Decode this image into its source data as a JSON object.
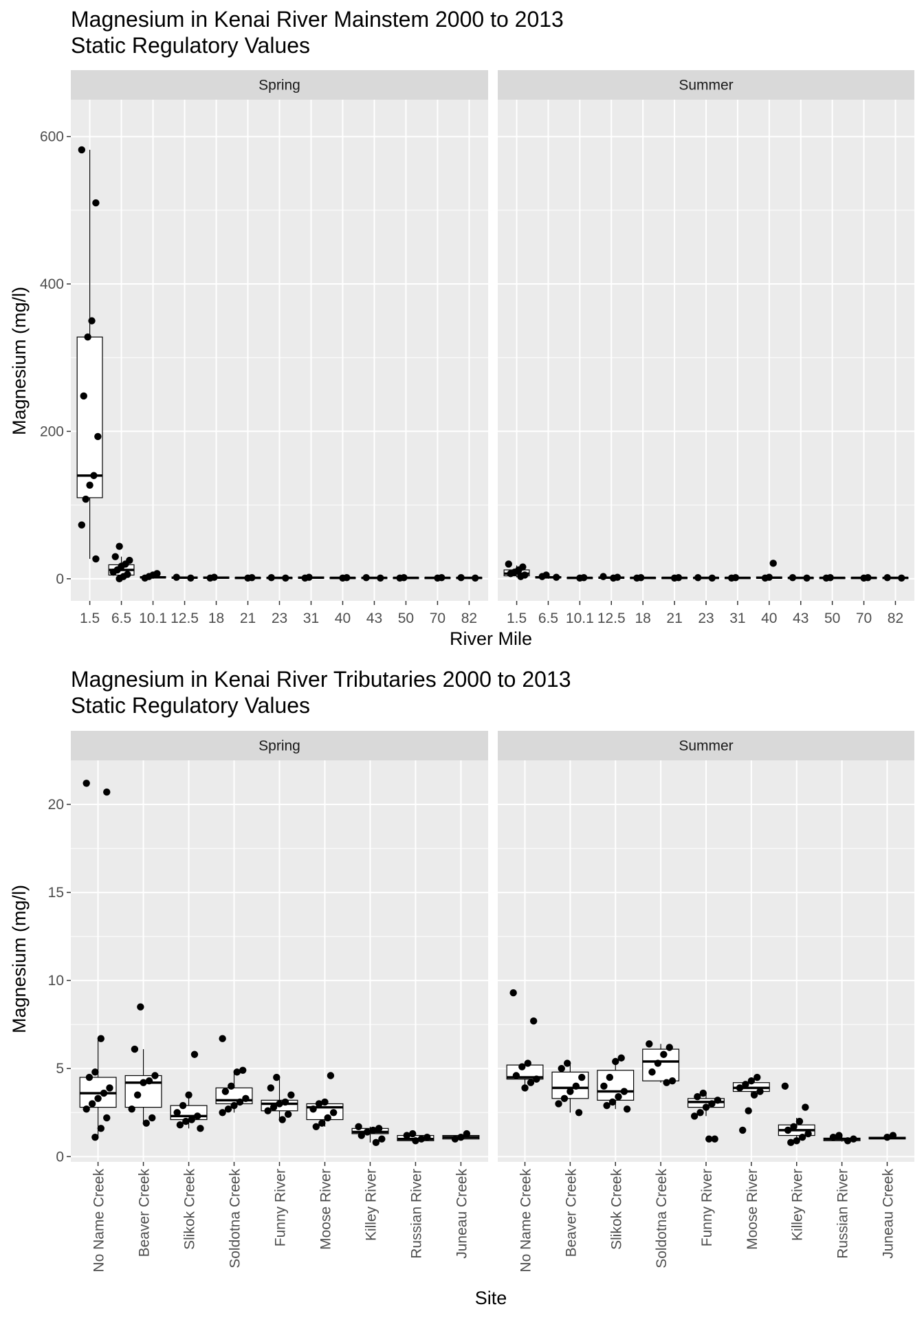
{
  "colors": {
    "panel_bg": "#ebebeb",
    "strip_bg": "#d9d9d9",
    "grid": "#ffffff",
    "box_fill": "#ffffff",
    "ink": "#000000",
    "tick_text": "#4d4d4d"
  },
  "chart_data": [
    {
      "type": "box",
      "title": "Magnesium in Kenai River Mainstem  2000 to 2013",
      "subtitle": "Static Regulatory Values",
      "xlabel": "River Mile",
      "ylabel": "Magnesium (mg/l)",
      "ylim": [
        -30,
        650
      ],
      "yticks": [
        0,
        200,
        400,
        600
      ],
      "yminor": [
        100,
        300,
        500
      ],
      "categories": [
        "1.5",
        "6.5",
        "10.1",
        "12.5",
        "18",
        "21",
        "23",
        "31",
        "40",
        "43",
        "50",
        "70",
        "82"
      ],
      "facets": [
        {
          "label": "Spring",
          "boxes": [
            {
              "q1": 110,
              "median": 140,
              "q3": 328,
              "lower": 27,
              "upper": 582,
              "points": [
                582,
                510,
                350,
                328,
                248,
                193,
                140,
                127,
                108,
                73,
                27
              ]
            },
            {
              "q1": 5,
              "median": 12,
              "q3": 19,
              "lower": 0,
              "upper": 30,
              "points": [
                44,
                30,
                25,
                20,
                17,
                12,
                9,
                6,
                3,
                0
              ]
            },
            {
              "q1": 1,
              "median": 2,
              "q3": 3,
              "lower": 0,
              "upper": 5,
              "points": [
                7,
                5,
                3,
                1
              ]
            },
            {
              "q1": 0.5,
              "median": 1.5,
              "q3": 2.5,
              "lower": 0,
              "upper": 3,
              "points": [
                2,
                1
              ]
            },
            {
              "q1": 0.5,
              "median": 1.5,
              "q3": 2.5,
              "lower": 0,
              "upper": 3,
              "points": [
                2,
                1
              ]
            },
            {
              "q1": 0.5,
              "median": 1.2,
              "q3": 2,
              "lower": 0,
              "upper": 2.5,
              "points": [
                1.5,
                1
              ]
            },
            {
              "q1": 0.5,
              "median": 1.2,
              "q3": 2,
              "lower": 0,
              "upper": 2.5,
              "points": [
                1.5,
                1
              ]
            },
            {
              "q1": 0.5,
              "median": 1.5,
              "q3": 2.5,
              "lower": 0,
              "upper": 3,
              "points": [
                2,
                1
              ]
            },
            {
              "q1": 0.5,
              "median": 1.2,
              "q3": 2,
              "lower": 0,
              "upper": 2.5,
              "points": [
                1.5,
                1
              ]
            },
            {
              "q1": 0.5,
              "median": 1.2,
              "q3": 2,
              "lower": 0,
              "upper": 2.5,
              "points": [
                1.5,
                1
              ]
            },
            {
              "q1": 0.5,
              "median": 1.2,
              "q3": 2,
              "lower": 0,
              "upper": 2.5,
              "points": [
                1.5,
                1
              ]
            },
            {
              "q1": 0.5,
              "median": 1.2,
              "q3": 2,
              "lower": 0,
              "upper": 2.5,
              "points": [
                1.5,
                1
              ]
            },
            {
              "q1": 0.5,
              "median": 1.2,
              "q3": 2,
              "lower": 0,
              "upper": 2.5,
              "points": [
                1.5,
                1
              ]
            }
          ]
        },
        {
          "label": "Summer",
          "boxes": [
            {
              "q1": 4,
              "median": 7,
              "q3": 12,
              "lower": 2,
              "upper": 18,
              "points": [
                20,
                16,
                12,
                9,
                7,
                5,
                3
              ]
            },
            {
              "q1": 1,
              "median": 2,
              "q3": 3,
              "lower": 0,
              "upper": 4,
              "points": [
                5,
                3,
                2
              ]
            },
            {
              "q1": 0.5,
              "median": 1.2,
              "q3": 2,
              "lower": 0,
              "upper": 2.5,
              "points": [
                1.5,
                1
              ]
            },
            {
              "q1": 0.5,
              "median": 1.5,
              "q3": 2.5,
              "lower": 0,
              "upper": 3,
              "points": [
                3,
                2,
                1
              ]
            },
            {
              "q1": 0.5,
              "median": 1.2,
              "q3": 2,
              "lower": 0,
              "upper": 2.5,
              "points": [
                1.5,
                1
              ]
            },
            {
              "q1": 0.5,
              "median": 1.2,
              "q3": 2,
              "lower": 0,
              "upper": 2.5,
              "points": [
                1.5,
                1
              ]
            },
            {
              "q1": 0.5,
              "median": 1.2,
              "q3": 2,
              "lower": 0,
              "upper": 2.5,
              "points": [
                1.5,
                1
              ]
            },
            {
              "q1": 0.5,
              "median": 1.2,
              "q3": 2,
              "lower": 0,
              "upper": 2.5,
              "points": [
                1.5,
                1
              ]
            },
            {
              "q1": 0.5,
              "median": 1.5,
              "q3": 2.5,
              "lower": 0,
              "upper": 3,
              "points": [
                21,
                2,
                1
              ]
            },
            {
              "q1": 0.5,
              "median": 1.2,
              "q3": 2,
              "lower": 0,
              "upper": 2.5,
              "points": [
                1.5,
                1
              ]
            },
            {
              "q1": 0.5,
              "median": 1.2,
              "q3": 2,
              "lower": 0,
              "upper": 2.5,
              "points": [
                1.5,
                1
              ]
            },
            {
              "q1": 0.5,
              "median": 1.2,
              "q3": 2,
              "lower": 0,
              "upper": 2.5,
              "points": [
                1.5,
                1
              ]
            },
            {
              "q1": 0.5,
              "median": 1.2,
              "q3": 2,
              "lower": 0,
              "upper": 2.5,
              "points": [
                1.5,
                1
              ]
            }
          ]
        }
      ]
    },
    {
      "type": "box",
      "title": "Magnesium in Kenai River Tributaries  2000 to 2013",
      "subtitle": "Static Regulatory Values",
      "xlabel": "Site",
      "ylabel": "Magnesium (mg/l)",
      "ylim": [
        -0.3,
        22.5
      ],
      "yticks": [
        0,
        5,
        10,
        15,
        20
      ],
      "yminor": [
        2.5,
        7.5,
        12.5,
        17.5
      ],
      "rotated_x_labels": true,
      "categories": [
        "No Name Creek",
        "Beaver Creek",
        "Slikok Creek",
        "Soldotna Creek",
        "Funny River",
        "Moose River",
        "Killey River",
        "Russian River",
        "Juneau Creek"
      ],
      "facets": [
        {
          "label": "Spring",
          "boxes": [
            {
              "q1": 2.8,
              "median": 3.6,
              "q3": 4.5,
              "lower": 1.1,
              "upper": 6.7,
              "points": [
                21.2,
                20.7,
                6.7,
                4.8,
                4.5,
                3.9,
                3.6,
                3.3,
                3.0,
                2.7,
                2.2,
                1.6,
                1.1
              ]
            },
            {
              "q1": 2.8,
              "median": 4.2,
              "q3": 4.6,
              "lower": 1.9,
              "upper": 6.1,
              "points": [
                8.5,
                6.1,
                4.6,
                4.3,
                4.2,
                3.5,
                2.7,
                2.2,
                1.9
              ]
            },
            {
              "q1": 2.1,
              "median": 2.3,
              "q3": 2.9,
              "lower": 1.6,
              "upper": 3.5,
              "points": [
                5.8,
                3.5,
                2.9,
                2.5,
                2.3,
                2.1,
                2.0,
                1.8,
                1.6
              ]
            },
            {
              "q1": 3.0,
              "median": 3.2,
              "q3": 3.9,
              "lower": 2.5,
              "upper": 4.9,
              "points": [
                6.7,
                4.9,
                4.8,
                4.0,
                3.7,
                3.3,
                3.1,
                2.9,
                2.7,
                2.5
              ]
            },
            {
              "q1": 2.6,
              "median": 3.0,
              "q3": 3.2,
              "lower": 2.1,
              "upper": 4.5,
              "points": [
                4.5,
                3.9,
                3.5,
                3.1,
                3.0,
                2.8,
                2.6,
                2.4,
                2.1
              ]
            },
            {
              "q1": 2.1,
              "median": 2.8,
              "q3": 3.0,
              "lower": 1.7,
              "upper": 3.1,
              "points": [
                4.6,
                3.1,
                3.0,
                2.7,
                2.5,
                2.2,
                1.9,
                1.7
              ]
            },
            {
              "q1": 1.3,
              "median": 1.4,
              "q3": 1.6,
              "lower": 0.8,
              "upper": 1.7,
              "points": [
                1.7,
                1.6,
                1.5,
                1.4,
                1.2,
                1.0,
                0.8
              ]
            },
            {
              "q1": 0.9,
              "median": 1.0,
              "q3": 1.2,
              "lower": 0.9,
              "upper": 1.3,
              "points": [
                1.3,
                1.2,
                1.1,
                1.0,
                0.9
              ]
            },
            {
              "q1": 1.0,
              "median": 1.1,
              "q3": 1.2,
              "lower": 0.95,
              "upper": 1.3,
              "points": [
                1.3,
                1.1,
                1.0
              ]
            }
          ]
        },
        {
          "label": "Summer",
          "boxes": [
            {
              "q1": 4.4,
              "median": 4.5,
              "q3": 5.2,
              "lower": 3.9,
              "upper": 5.3,
              "points": [
                9.3,
                7.7,
                5.3,
                5.1,
                4.6,
                4.4,
                4.2,
                3.9
              ]
            },
            {
              "q1": 3.3,
              "median": 3.9,
              "q3": 4.8,
              "lower": 2.5,
              "upper": 5.3,
              "points": [
                5.3,
                5.0,
                4.5,
                4.0,
                3.7,
                3.3,
                3.0,
                2.5
              ]
            },
            {
              "q1": 3.2,
              "median": 3.7,
              "q3": 4.9,
              "lower": 2.7,
              "upper": 5.6,
              "points": [
                5.6,
                5.4,
                4.5,
                4.0,
                3.7,
                3.4,
                3.1,
                2.9,
                2.7
              ]
            },
            {
              "q1": 4.3,
              "median": 5.4,
              "q3": 6.1,
              "lower": 4.2,
              "upper": 6.4,
              "points": [
                6.4,
                6.2,
                5.8,
                5.3,
                4.8,
                4.3,
                4.2
              ]
            },
            {
              "q1": 2.8,
              "median": 3.1,
              "q3": 3.3,
              "lower": 2.3,
              "upper": 3.6,
              "points": [
                3.6,
                3.4,
                3.2,
                3.0,
                2.8,
                2.5,
                2.3,
                1.0,
                1.0
              ]
            },
            {
              "q1": 3.7,
              "median": 3.9,
              "q3": 4.2,
              "lower": 3.5,
              "upper": 4.5,
              "points": [
                4.5,
                4.3,
                4.1,
                3.9,
                3.7,
                3.5,
                2.6,
                1.5
              ]
            },
            {
              "q1": 1.2,
              "median": 1.5,
              "q3": 1.8,
              "lower": 0.8,
              "upper": 2.2,
              "points": [
                4.0,
                2.8,
                2.0,
                1.7,
                1.5,
                1.3,
                1.1,
                0.9,
                0.8
              ]
            },
            {
              "q1": 0.9,
              "median": 1.0,
              "q3": 1.05,
              "lower": 0.85,
              "upper": 1.2,
              "points": [
                1.2,
                1.1,
                1.0,
                0.9
              ]
            },
            {
              "q1": 1.0,
              "median": 1.05,
              "q3": 1.1,
              "lower": 1.0,
              "upper": 1.2,
              "points": [
                1.2,
                1.1
              ]
            }
          ]
        }
      ]
    }
  ]
}
